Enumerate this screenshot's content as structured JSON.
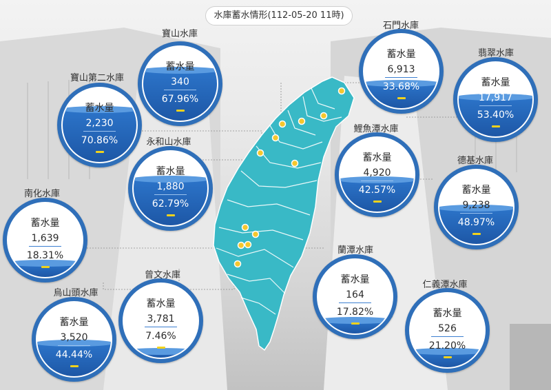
{
  "title": "水庫蓄水情形(112-05-20 11時)",
  "gauge_label": "蓄水量",
  "colors": {
    "ring": "#2f6fb9",
    "water": "#1d57a6",
    "map": "#39b9c6",
    "dash": "#f1d21c"
  },
  "reservoirs": [
    {
      "name": "寶山水庫",
      "volume": "340",
      "percent": "67.96%",
      "fill": 0.6796
    },
    {
      "name": "寶山第二水庫",
      "volume": "2,230",
      "percent": "70.86%",
      "fill": 0.7086
    },
    {
      "name": "永和山水庫",
      "volume": "1,880",
      "percent": "62.79%",
      "fill": 0.6279
    },
    {
      "name": "南化水庫",
      "volume": "1,639",
      "percent": "18.31%",
      "fill": 0.1831
    },
    {
      "name": "曾文水庫",
      "volume": "3,781",
      "percent": "7.46%",
      "fill": 0.0746
    },
    {
      "name": "烏山頭水庫",
      "volume": "3,520",
      "percent": "44.44%",
      "fill": 0.4444
    },
    {
      "name": "石門水庫",
      "volume": "6,913",
      "percent": "33.68%",
      "fill": 0.3368
    },
    {
      "name": "翡翠水庫",
      "volume": "17,917",
      "percent": "53.40%",
      "fill": 0.534
    },
    {
      "name": "鯉魚潭水庫",
      "volume": "4,920",
      "percent": "42.57%",
      "fill": 0.4257
    },
    {
      "name": "德基水庫",
      "volume": "9,238",
      "percent": "48.97%",
      "fill": 0.4897
    },
    {
      "name": "蘭潭水庫",
      "volume": "164",
      "percent": "17.82%",
      "fill": 0.1782
    },
    {
      "name": "仁義潭水庫",
      "volume": "526",
      "percent": "21.20%",
      "fill": 0.212
    }
  ]
}
